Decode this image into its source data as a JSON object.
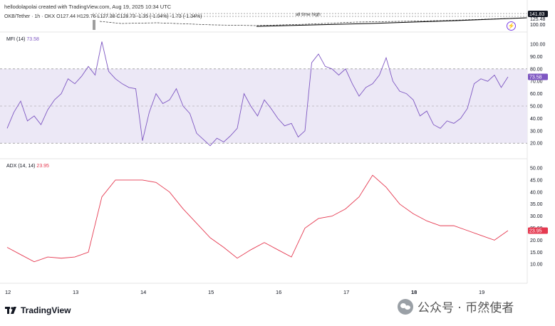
{
  "caption": "hellodolapolai created with TradingView.com, Aug 19, 2025 10:34 UTC",
  "symbol_line": "OKB/Tether · 1h · OKX   O127.44  H129.76  L127.38  C128.73  -1.35 (-1.04%)  -1.73 (-1.34%)",
  "ath_label": "all time high",
  "price_axis": {
    "labels": [
      "141.83",
      "125.48",
      "100.00"
    ]
  },
  "mfi": {
    "legend_name": "MFI (14)",
    "legend_value": "73.58",
    "color": "#7e57c2",
    "band_color": "#ece8f6",
    "axis_labels": [
      "100.00",
      "90.00",
      "80.00",
      "70.00",
      "60.00",
      "50.00",
      "40.00",
      "30.00",
      "20.00"
    ],
    "last_label": "73.58"
  },
  "adx": {
    "legend_name": "ADX (14, 14)",
    "legend_value": "23.95",
    "color": "#e53950",
    "axis_labels": [
      "50.00",
      "45.00",
      "40.00",
      "35.00",
      "30.00",
      "25.00",
      "20.00",
      "15.00",
      "10.00"
    ],
    "last_label": "23.95"
  },
  "time_axis": {
    "labels": [
      "12",
      "13",
      "14",
      "15",
      "16",
      "17",
      "18",
      "19"
    ],
    "bold": [
      "18"
    ]
  },
  "footer": {
    "brand": "TradingView"
  },
  "watermark": {
    "text": "公众号 · 币然使者"
  },
  "chart_data": [
    {
      "type": "line",
      "title": "MFI (14)",
      "ylim": [
        15,
        105
      ],
      "bands": [
        20,
        50,
        80
      ],
      "x": [
        12.0,
        12.1,
        12.2,
        12.3,
        12.4,
        12.5,
        12.6,
        12.7,
        12.8,
        12.9,
        13.0,
        13.1,
        13.2,
        13.3,
        13.4,
        13.5,
        13.6,
        13.7,
        13.8,
        13.9,
        14.0,
        14.1,
        14.2,
        14.3,
        14.4,
        14.5,
        14.6,
        14.7,
        14.8,
        14.9,
        15.0,
        15.1,
        15.2,
        15.3,
        15.4,
        15.5,
        15.6,
        15.7,
        15.8,
        15.9,
        16.0,
        16.1,
        16.2,
        16.3,
        16.4,
        16.5,
        16.6,
        16.7,
        16.8,
        16.9,
        17.0,
        17.1,
        17.2,
        17.3,
        17.4,
        17.5,
        17.6,
        17.7,
        17.8,
        17.9,
        18.0,
        18.1,
        18.2,
        18.3,
        18.4,
        18.5,
        18.6,
        18.7,
        18.8,
        18.9,
        19.0,
        19.1,
        19.2,
        19.3,
        19.4
      ],
      "values": [
        32,
        45,
        54,
        38,
        42,
        35,
        47,
        55,
        60,
        72,
        68,
        74,
        82,
        75,
        102,
        78,
        72,
        68,
        65,
        64,
        22,
        45,
        60,
        52,
        55,
        64,
        50,
        44,
        28,
        23,
        18,
        24,
        21,
        26,
        32,
        60,
        50,
        42,
        55,
        48,
        40,
        34,
        36,
        25,
        30,
        85,
        92,
        82,
        80,
        75,
        80,
        68,
        58,
        65,
        68,
        75,
        89,
        70,
        62,
        60,
        55,
        42,
        46,
        35,
        32,
        38,
        36,
        40,
        48,
        68,
        72,
        70,
        75,
        65,
        73.58
      ]
    },
    {
      "type": "line",
      "title": "ADX (14, 14)",
      "ylim": [
        7.5,
        52.5
      ],
      "x": [
        12.0,
        12.2,
        12.4,
        12.6,
        12.8,
        13.0,
        13.2,
        13.4,
        13.6,
        13.8,
        14.0,
        14.2,
        14.4,
        14.6,
        14.8,
        15.0,
        15.2,
        15.4,
        15.6,
        15.8,
        16.0,
        16.2,
        16.4,
        16.6,
        16.8,
        17.0,
        17.2,
        17.4,
        17.6,
        17.8,
        18.0,
        18.2,
        18.4,
        18.6,
        18.8,
        19.0,
        19.2,
        19.4
      ],
      "values": [
        17,
        14,
        11,
        13,
        12.5,
        13,
        15,
        38,
        45,
        45,
        45,
        44,
        40,
        33,
        27,
        21,
        17,
        12.5,
        16,
        19,
        16,
        13,
        25,
        29,
        30,
        33,
        38,
        47,
        42,
        35,
        31,
        28,
        26,
        26,
        24,
        22,
        20,
        23.95
      ]
    }
  ]
}
